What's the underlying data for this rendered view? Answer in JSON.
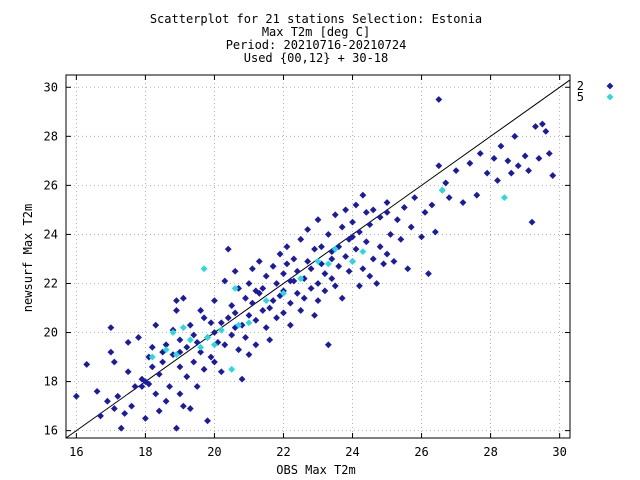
{
  "chart_data": {
    "type": "scatter",
    "title_lines": [
      "Scatterplot for   21 stations Selection: Estonia",
      "Max T2m [deg C]",
      "Period: 20210716-20210724",
      "Used {00,12} + 30-18"
    ],
    "xlabel": "OBS Max T2m",
    "ylabel": "newsurf Max T2m",
    "xlim": [
      15.7,
      30.3
    ],
    "ylim": [
      15.7,
      30.5
    ],
    "xticks": [
      16,
      18,
      20,
      22,
      24,
      26,
      28,
      30
    ],
    "yticks": [
      16,
      18,
      20,
      22,
      24,
      26,
      28,
      30
    ],
    "grid": true,
    "legend_position": "right",
    "diagonal": true,
    "series": [
      {
        "name": "2",
        "color": "#1a1aa6",
        "points": [
          [
            16.0,
            17.4
          ],
          [
            16.3,
            18.7
          ],
          [
            16.6,
            17.6
          ],
          [
            16.7,
            16.6
          ],
          [
            16.9,
            17.2
          ],
          [
            17.0,
            20.2
          ],
          [
            17.0,
            19.2
          ],
          [
            17.1,
            18.8
          ],
          [
            17.1,
            16.9
          ],
          [
            17.2,
            17.4
          ],
          [
            17.3,
            16.1
          ],
          [
            17.4,
            16.7
          ],
          [
            17.5,
            18.4
          ],
          [
            17.5,
            19.6
          ],
          [
            17.6,
            17.0
          ],
          [
            17.7,
            17.8
          ],
          [
            17.8,
            19.8
          ],
          [
            17.9,
            18.1
          ],
          [
            17.9,
            17.8
          ],
          [
            18.0,
            18.0
          ],
          [
            18.0,
            16.5
          ],
          [
            18.1,
            19.0
          ],
          [
            18.1,
            17.9
          ],
          [
            18.2,
            18.6
          ],
          [
            18.3,
            20.3
          ],
          [
            18.3,
            17.5
          ],
          [
            18.4,
            16.8
          ],
          [
            18.4,
            18.3
          ],
          [
            18.5,
            19.2
          ],
          [
            18.5,
            18.8
          ],
          [
            18.6,
            17.2
          ],
          [
            18.6,
            19.5
          ],
          [
            18.7,
            17.8
          ],
          [
            18.8,
            19.1
          ],
          [
            18.8,
            20.1
          ],
          [
            18.9,
            21.3
          ],
          [
            18.9,
            20.9
          ],
          [
            18.9,
            16.1
          ],
          [
            19.0,
            19.7
          ],
          [
            19.0,
            17.5
          ],
          [
            19.0,
            18.6
          ],
          [
            19.1,
            21.4
          ],
          [
            19.1,
            17.0
          ],
          [
            19.2,
            19.4
          ],
          [
            19.2,
            18.2
          ],
          [
            19.3,
            20.3
          ],
          [
            19.3,
            16.9
          ],
          [
            19.4,
            18.8
          ],
          [
            19.4,
            19.9
          ],
          [
            19.5,
            19.6
          ],
          [
            19.5,
            17.8
          ],
          [
            19.6,
            20.9
          ],
          [
            19.6,
            19.2
          ],
          [
            19.7,
            18.5
          ],
          [
            19.7,
            20.6
          ],
          [
            19.8,
            16.4
          ],
          [
            19.8,
            19.8
          ],
          [
            19.9,
            19.0
          ],
          [
            19.9,
            20.4
          ],
          [
            20.0,
            20.0
          ],
          [
            20.0,
            21.3
          ],
          [
            20.0,
            18.8
          ],
          [
            20.1,
            19.6
          ],
          [
            20.2,
            20.4
          ],
          [
            20.2,
            18.4
          ],
          [
            20.3,
            22.1
          ],
          [
            20.3,
            19.5
          ],
          [
            20.4,
            23.4
          ],
          [
            20.4,
            20.6
          ],
          [
            20.5,
            21.1
          ],
          [
            20.5,
            19.9
          ],
          [
            20.6,
            22.5
          ],
          [
            20.6,
            20.8
          ],
          [
            20.7,
            19.3
          ],
          [
            20.7,
            21.8
          ],
          [
            20.8,
            20.3
          ],
          [
            20.8,
            18.1
          ],
          [
            20.9,
            21.4
          ],
          [
            20.9,
            19.8
          ],
          [
            21.0,
            22.0
          ],
          [
            21.0,
            20.7
          ],
          [
            21.0,
            19.1
          ],
          [
            21.1,
            21.2
          ],
          [
            21.1,
            22.6
          ],
          [
            21.2,
            20.5
          ],
          [
            21.2,
            19.5
          ],
          [
            21.3,
            21.6
          ],
          [
            21.3,
            22.9
          ],
          [
            21.4,
            20.9
          ],
          [
            21.4,
            21.8
          ],
          [
            21.5,
            20.2
          ],
          [
            21.5,
            22.3
          ],
          [
            21.6,
            21.0
          ],
          [
            21.6,
            19.7
          ],
          [
            21.7,
            22.7
          ],
          [
            21.7,
            21.3
          ],
          [
            21.8,
            20.6
          ],
          [
            21.8,
            22.0
          ],
          [
            21.9,
            21.5
          ],
          [
            21.9,
            23.2
          ],
          [
            22.0,
            22.4
          ],
          [
            22.0,
            20.8
          ],
          [
            22.0,
            21.7
          ],
          [
            22.1,
            23.5
          ],
          [
            22.1,
            22.8
          ],
          [
            22.2,
            21.2
          ],
          [
            22.2,
            20.3
          ],
          [
            22.3,
            22.1
          ],
          [
            22.3,
            23.0
          ],
          [
            22.4,
            21.6
          ],
          [
            22.4,
            22.5
          ],
          [
            22.5,
            20.9
          ],
          [
            22.5,
            23.8
          ],
          [
            22.6,
            22.2
          ],
          [
            22.6,
            21.4
          ],
          [
            22.7,
            22.9
          ],
          [
            22.7,
            24.2
          ],
          [
            22.8,
            21.8
          ],
          [
            22.8,
            22.6
          ],
          [
            22.9,
            20.7
          ],
          [
            22.9,
            23.4
          ],
          [
            23.0,
            22.0
          ],
          [
            23.0,
            24.6
          ],
          [
            23.0,
            21.3
          ],
          [
            23.1,
            22.8
          ],
          [
            23.1,
            23.5
          ],
          [
            23.2,
            21.7
          ],
          [
            23.2,
            22.4
          ],
          [
            23.3,
            24.0
          ],
          [
            23.3,
            19.5
          ],
          [
            23.4,
            23.0
          ],
          [
            23.4,
            22.2
          ],
          [
            23.5,
            24.8
          ],
          [
            23.5,
            21.9
          ],
          [
            23.6,
            23.5
          ],
          [
            23.6,
            22.7
          ],
          [
            23.7,
            24.3
          ],
          [
            23.7,
            21.4
          ],
          [
            23.8,
            23.1
          ],
          [
            23.8,
            25.0
          ],
          [
            23.9,
            22.5
          ],
          [
            23.9,
            23.8
          ],
          [
            24.0,
            24.5
          ],
          [
            24.0,
            22.9
          ],
          [
            24.1,
            25.2
          ],
          [
            24.1,
            23.4
          ],
          [
            24.2,
            21.9
          ],
          [
            24.2,
            24.1
          ],
          [
            24.3,
            22.6
          ],
          [
            24.3,
            25.6
          ],
          [
            24.4,
            23.7
          ],
          [
            24.4,
            24.9
          ],
          [
            24.5,
            22.3
          ],
          [
            24.5,
            24.4
          ],
          [
            24.6,
            23.0
          ],
          [
            24.6,
            25.0
          ],
          [
            24.7,
            22.0
          ],
          [
            24.8,
            23.5
          ],
          [
            24.8,
            24.7
          ],
          [
            24.9,
            22.8
          ],
          [
            25.0,
            25.3
          ],
          [
            25.0,
            23.2
          ],
          [
            25.1,
            24.0
          ],
          [
            25.2,
            22.9
          ],
          [
            25.3,
            24.6
          ],
          [
            25.4,
            23.8
          ],
          [
            25.5,
            25.1
          ],
          [
            25.6,
            22.6
          ],
          [
            25.7,
            24.3
          ],
          [
            25.8,
            25.5
          ],
          [
            26.0,
            23.9
          ],
          [
            26.1,
            24.9
          ],
          [
            26.2,
            22.4
          ],
          [
            26.3,
            25.2
          ],
          [
            26.4,
            24.1
          ],
          [
            26.5,
            26.8
          ],
          [
            26.5,
            29.5
          ],
          [
            26.6,
            25.8
          ],
          [
            26.7,
            26.1
          ],
          [
            26.8,
            25.5
          ],
          [
            27.0,
            26.6
          ],
          [
            27.2,
            25.3
          ],
          [
            27.4,
            26.9
          ],
          [
            27.6,
            25.6
          ],
          [
            27.7,
            27.3
          ],
          [
            27.9,
            26.5
          ],
          [
            28.1,
            27.1
          ],
          [
            28.2,
            26.2
          ],
          [
            28.3,
            27.6
          ],
          [
            28.5,
            27.0
          ],
          [
            28.6,
            26.5
          ],
          [
            28.7,
            28.0
          ],
          [
            28.8,
            26.8
          ],
          [
            29.0,
            27.2
          ],
          [
            29.1,
            26.6
          ],
          [
            29.2,
            24.5
          ],
          [
            29.3,
            28.4
          ],
          [
            29.4,
            27.1
          ],
          [
            29.5,
            28.5
          ],
          [
            29.6,
            28.2
          ],
          [
            29.7,
            27.3
          ],
          [
            29.8,
            26.4
          ],
          [
            18.2,
            19.4
          ],
          [
            19.0,
            19.2
          ],
          [
            20.6,
            20.2
          ],
          [
            21.2,
            21.7
          ],
          [
            22.2,
            22.1
          ],
          [
            23.4,
            23.3
          ],
          [
            24.0,
            23.9
          ],
          [
            25.0,
            24.9
          ]
        ]
      },
      {
        "name": "5",
        "color": "#22dde0",
        "points": [
          [
            18.2,
            19.0
          ],
          [
            18.6,
            19.3
          ],
          [
            18.8,
            20.0
          ],
          [
            18.9,
            19.1
          ],
          [
            19.1,
            20.2
          ],
          [
            19.3,
            19.7
          ],
          [
            19.6,
            19.4
          ],
          [
            19.7,
            22.6
          ],
          [
            19.8,
            19.8
          ],
          [
            20.0,
            19.5
          ],
          [
            20.2,
            20.1
          ],
          [
            20.5,
            18.5
          ],
          [
            20.6,
            21.8
          ],
          [
            20.7,
            20.3
          ],
          [
            21.0,
            20.4
          ],
          [
            21.5,
            21.3
          ],
          [
            22.0,
            21.6
          ],
          [
            22.5,
            22.2
          ],
          [
            23.0,
            22.9
          ],
          [
            23.3,
            22.8
          ],
          [
            23.5,
            23.4
          ],
          [
            24.0,
            22.9
          ],
          [
            24.3,
            23.3
          ],
          [
            26.6,
            25.8
          ],
          [
            28.4,
            25.5
          ]
        ]
      }
    ]
  }
}
